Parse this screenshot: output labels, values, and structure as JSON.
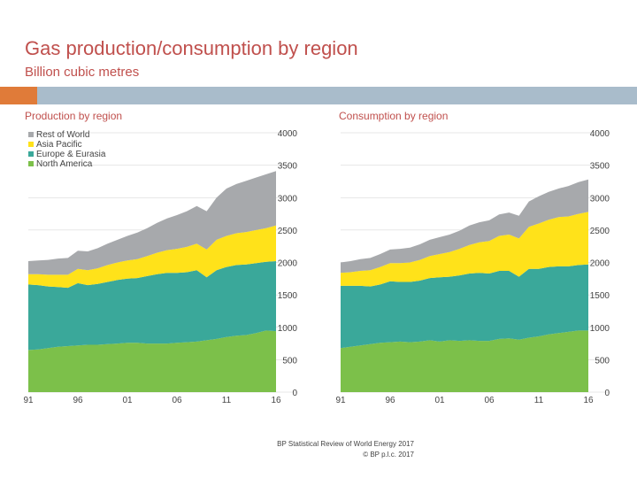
{
  "title": "Gas production/consumption by region",
  "subtitle": "Billion cubic metres",
  "source": {
    "line1": "BP Statistical Review of World Energy 2017",
    "line2": "© BP p.l.c. 2017"
  },
  "colors": {
    "rest_of_world": "#a7a9ac",
    "asia_pacific": "#ffe21a",
    "europe_eurasia": "#3aa89a",
    "north_america": "#7cc04a",
    "title": "#c0504d",
    "band": "#a9bccb",
    "band_accent": "#e07b39"
  },
  "chart_data": [
    {
      "type": "area",
      "stacked": true,
      "title": "Production by region",
      "x": [
        1991,
        1992,
        1993,
        1994,
        1995,
        1996,
        1997,
        1998,
        1999,
        2000,
        2001,
        2002,
        2003,
        2004,
        2005,
        2006,
        2007,
        2008,
        2009,
        2010,
        2011,
        2012,
        2013,
        2014,
        2015,
        2016
      ],
      "xticks": [
        "91",
        "96",
        "01",
        "06",
        "11",
        "16"
      ],
      "ylim": [
        0,
        4000
      ],
      "yticks": [
        "0",
        "500",
        "1000",
        "1500",
        "2000",
        "2500",
        "3000",
        "3500",
        "4000"
      ],
      "legend": [
        "Rest of World",
        "Asia Pacific",
        "Europe & Eurasia",
        "North America"
      ],
      "legend_position": "top-left",
      "series": [
        {
          "name": "North America",
          "values": [
            650,
            660,
            680,
            700,
            710,
            720,
            730,
            730,
            740,
            750,
            760,
            760,
            750,
            750,
            750,
            760,
            770,
            780,
            800,
            820,
            850,
            870,
            880,
            910,
            950,
            940
          ]
        },
        {
          "name": "Europe & Eurasia",
          "values": [
            1010,
            990,
            950,
            920,
            900,
            960,
            920,
            940,
            960,
            980,
            990,
            1000,
            1040,
            1070,
            1090,
            1080,
            1080,
            1100,
            970,
            1060,
            1080,
            1090,
            1090,
            1080,
            1060,
            1080
          ]
        },
        {
          "name": "Asia Pacific",
          "values": [
            160,
            170,
            180,
            190,
            200,
            220,
            230,
            240,
            260,
            270,
            280,
            290,
            310,
            330,
            350,
            370,
            390,
            410,
            430,
            470,
            480,
            490,
            500,
            510,
            520,
            550
          ]
        },
        {
          "name": "Rest of World",
          "values": [
            200,
            210,
            230,
            250,
            260,
            280,
            290,
            310,
            330,
            350,
            380,
            410,
            430,
            460,
            490,
            520,
            550,
            580,
            590,
            650,
            730,
            760,
            790,
            810,
            830,
            840
          ]
        }
      ]
    },
    {
      "type": "area",
      "stacked": true,
      "title": "Consumption by region",
      "x": [
        1991,
        1992,
        1993,
        1994,
        1995,
        1996,
        1997,
        1998,
        1999,
        2000,
        2001,
        2002,
        2003,
        2004,
        2005,
        2006,
        2007,
        2008,
        2009,
        2010,
        2011,
        2012,
        2013,
        2014,
        2015,
        2016
      ],
      "xticks": [
        "91",
        "96",
        "01",
        "06",
        "11",
        "16"
      ],
      "ylim": [
        0,
        4000
      ],
      "yticks": [
        "0",
        "500",
        "1000",
        "1500",
        "2000",
        "2500",
        "3000",
        "3500",
        "4000"
      ],
      "series": [
        {
          "name": "North America",
          "values": [
            680,
            700,
            720,
            740,
            760,
            770,
            780,
            770,
            780,
            800,
            780,
            800,
            790,
            800,
            790,
            790,
            820,
            830,
            810,
            840,
            860,
            890,
            910,
            930,
            950,
            950
          ]
        },
        {
          "name": "Europe & Eurasia",
          "values": [
            960,
            940,
            920,
            890,
            900,
            940,
            920,
            930,
            940,
            960,
            990,
            980,
            1010,
            1030,
            1050,
            1040,
            1050,
            1040,
            970,
            1060,
            1040,
            1040,
            1030,
            1010,
            1010,
            1020
          ]
        },
        {
          "name": "Asia Pacific",
          "values": [
            200,
            210,
            230,
            250,
            270,
            280,
            290,
            300,
            320,
            340,
            360,
            380,
            410,
            440,
            470,
            500,
            540,
            560,
            590,
            650,
            700,
            730,
            760,
            770,
            790,
            810
          ]
        },
        {
          "name": "Rest of World",
          "values": [
            160,
            170,
            180,
            190,
            200,
            210,
            220,
            230,
            240,
            250,
            260,
            270,
            280,
            300,
            310,
            320,
            330,
            340,
            350,
            390,
            420,
            430,
            440,
            470,
            490,
            500
          ]
        }
      ]
    }
  ]
}
